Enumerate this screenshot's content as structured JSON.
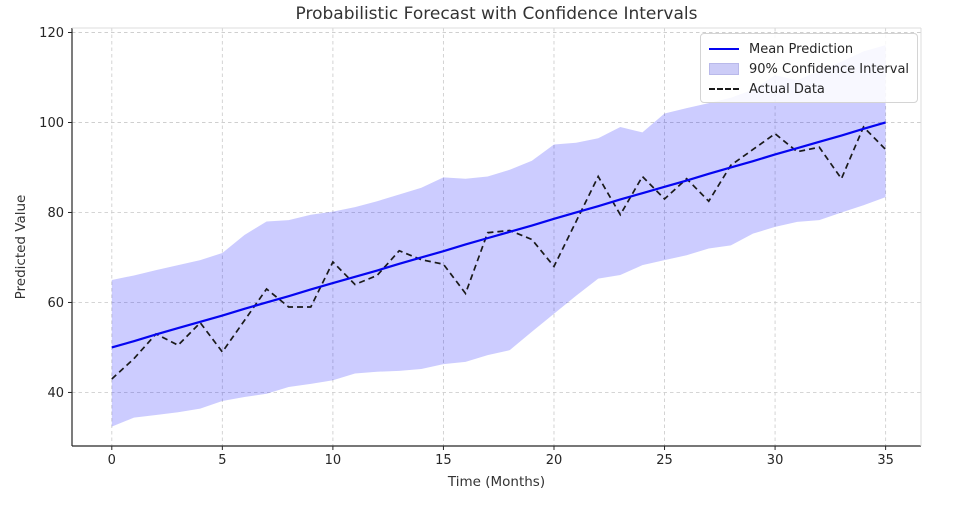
{
  "figure": {
    "title": "Probabilistic Forecast with Confidence Intervals"
  },
  "legend": {
    "items": [
      {
        "label": "Mean Prediction",
        "type": "line",
        "color": "#0000f5"
      },
      {
        "label": "90% Confidence Interval",
        "type": "patch",
        "color": "#ccccf7"
      },
      {
        "label": "Actual Data",
        "type": "dashed-line",
        "color": "#1a1a1a"
      }
    ]
  },
  "chart_data": {
    "type": "line",
    "title": "Probabilistic Forecast with Confidence Intervals",
    "xlabel": "Time (Months)",
    "ylabel": "Predicted Value",
    "xlim": [
      -1.8,
      36.6
    ],
    "ylim": [
      28.1,
      121.0
    ],
    "xticks": [
      0,
      5,
      10,
      15,
      20,
      25,
      30,
      35
    ],
    "yticks": [
      40,
      60,
      80,
      100,
      120
    ],
    "grid": true,
    "legend_position": "upper right",
    "x": [
      0,
      1,
      2,
      3,
      4,
      5,
      6,
      7,
      8,
      9,
      10,
      11,
      12,
      13,
      14,
      15,
      16,
      17,
      18,
      19,
      20,
      21,
      22,
      23,
      24,
      25,
      26,
      27,
      28,
      29,
      30,
      31,
      32,
      33,
      34,
      35
    ],
    "series": [
      {
        "name": "Mean Prediction",
        "style": "solid",
        "color": "#0505f0",
        "values": [
          50.0,
          51.4,
          52.9,
          54.3,
          55.7,
          57.1,
          58.6,
          60.0,
          61.4,
          62.9,
          64.3,
          65.7,
          67.1,
          68.6,
          70.0,
          71.4,
          72.9,
          74.3,
          75.7,
          77.1,
          78.6,
          80.0,
          81.4,
          82.9,
          84.3,
          85.7,
          87.1,
          88.6,
          90.0,
          91.4,
          92.9,
          94.3,
          95.7,
          97.1,
          98.6,
          100.0
        ]
      },
      {
        "name": "Actual Data",
        "style": "dashed",
        "color": "#1a1a1a",
        "values": [
          43,
          47.5,
          53,
          50.5,
          55.5,
          49,
          56,
          63,
          59,
          59,
          69,
          64,
          66,
          71.5,
          69.5,
          68.5,
          62,
          75.5,
          76,
          74,
          68,
          78,
          88,
          79.5,
          88,
          83,
          87.5,
          82.5,
          90.5,
          94,
          97.5,
          93.5,
          94.5,
          87.5,
          99,
          94
        ]
      }
    ],
    "band": {
      "name": "90% Confidence Interval",
      "fill": "rgba(0,0,255,0.2)",
      "upper": [
        65,
        66,
        67.2,
        68.3,
        69.4,
        71,
        75,
        78,
        78.3,
        79.5,
        80.2,
        81.2,
        82.5,
        84,
        85.5,
        87.8,
        87.5,
        88,
        89.5,
        91.5,
        95.1,
        95.5,
        96.5,
        99,
        97.8,
        102,
        103.2,
        104.3,
        105.5,
        107.3,
        110.5,
        109.4,
        111.5,
        113.5,
        115.8,
        117.2
      ],
      "lower": [
        32.4,
        34.4,
        35,
        35.6,
        36.4,
        38.1,
        39,
        39.7,
        41.2,
        41.9,
        42.7,
        44.2,
        44.6,
        44.8,
        45.2,
        46.3,
        46.8,
        48.3,
        49.4,
        53.5,
        57.5,
        61.5,
        65.3,
        66.1,
        68.3,
        69.4,
        70.5,
        72,
        72.7,
        75.3,
        76.8,
        77.9,
        78.3,
        80,
        81.6,
        83.4
      ]
    },
    "colors": {
      "grid": "#cfcfcf",
      "spine_dark": "#262626",
      "spine_light": "#dcdcdc",
      "tick_label": "#262626"
    }
  }
}
